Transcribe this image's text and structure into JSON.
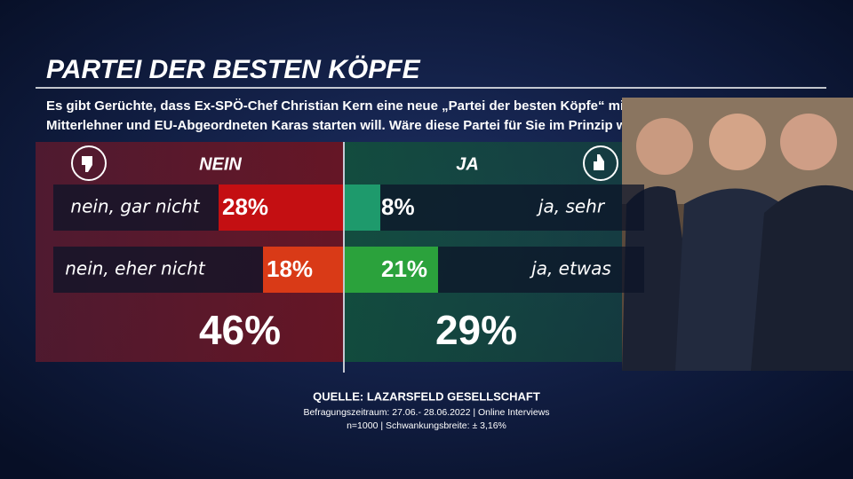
{
  "chart_data": {
    "type": "bar",
    "title": "PARTEI DER BESTEN KÖPFE",
    "subtitle": [
      "Es gibt Gerüchte, dass Ex-SPÖ-Chef Christian Kern eine neue „Partei der besten Köpfe“ mit Ex-Vizekanzler",
      "Mitterlehner und EU-Abgeordneten Karas starten will. Wäre diese Partei für Sie im Prinzip wählbar?"
    ],
    "series": [
      {
        "name": "NEIN",
        "categories": [
          "nein, gar nicht",
          "nein, eher nicht"
        ],
        "values": [
          28,
          18
        ],
        "value_labels": [
          "28%",
          "18%"
        ],
        "colors": [
          "#c40f12",
          "#d93a17"
        ],
        "total": 46,
        "total_label": "46%"
      },
      {
        "name": "JA",
        "categories": [
          "ja, sehr",
          "ja, etwas"
        ],
        "values": [
          8,
          21
        ],
        "value_labels": [
          "8%",
          "21%"
        ],
        "colors": [
          "#1e9a6c",
          "#2ba23c"
        ],
        "total": 29,
        "total_label": "29%"
      }
    ],
    "source": "QUELLE:  LAZARSFELD GESELLSCHAFT",
    "notes": [
      "Befragungszeitraum: 27.06.- 28.06.2022 | Online Interviews",
      "n=1000 |  Schwankungsbreite: ± 3,16%"
    ]
  }
}
